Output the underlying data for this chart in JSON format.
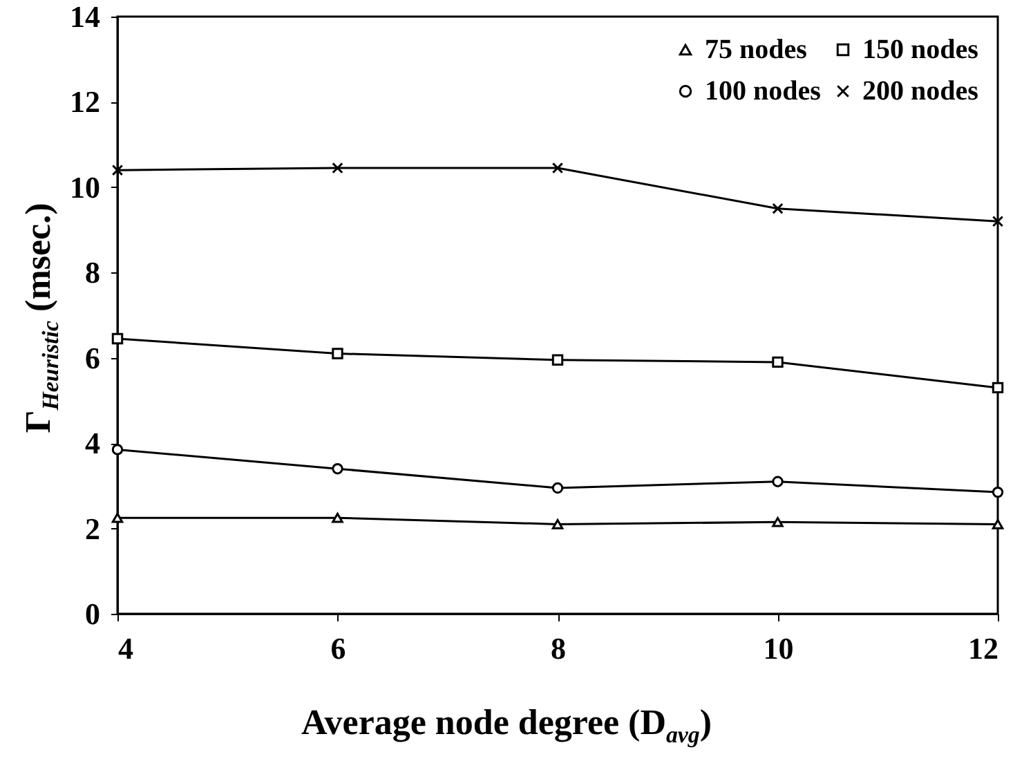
{
  "chart_data": {
    "type": "line",
    "xlabel": "Average node degree (D$_{avg}$)",
    "ylabel": "Γ$_{Heuristic}$  (msec.)",
    "x": [
      4,
      6,
      8,
      10,
      12
    ],
    "xlim": [
      4,
      12
    ],
    "xticks": [
      4,
      6,
      8,
      10,
      12
    ],
    "ylim": [
      0,
      14
    ],
    "yticks": [
      0,
      2,
      4,
      6,
      8,
      10,
      12,
      14
    ],
    "legend": "top right",
    "grid": false,
    "line_style": "solid",
    "series": [
      {
        "name": "75 nodes",
        "color": "#000000",
        "marker": "triangle",
        "values": [
          2.25,
          2.25,
          2.1,
          2.15,
          2.1
        ]
      },
      {
        "name": "100 nodes",
        "color": "#000000",
        "marker": "circle",
        "values": [
          3.85,
          3.4,
          2.95,
          3.1,
          2.85
        ]
      },
      {
        "name": "150 nodes",
        "color": "#000000",
        "marker": "square",
        "values": [
          6.45,
          6.1,
          5.95,
          5.9,
          5.3
        ]
      },
      {
        "name": "200 nodes",
        "color": "#000000",
        "marker": "cross",
        "values": [
          10.4,
          10.45,
          10.45,
          9.5,
          9.2
        ]
      }
    ]
  }
}
